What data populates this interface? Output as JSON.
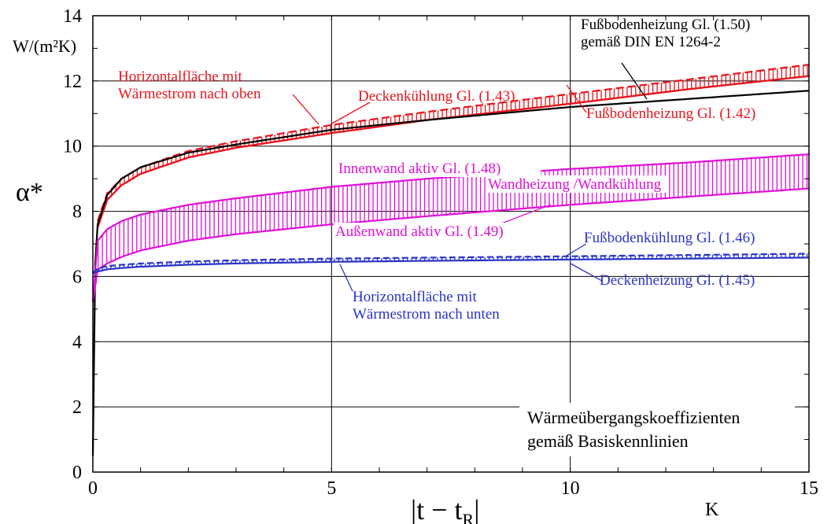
{
  "chart_data": {
    "type": "line",
    "ylabel": "α*",
    "yunit": "W/(m²K)",
    "xlabel_main": "|t − t",
    "xlabel_sub": "R",
    "xlabel_end": "|",
    "xunit": "K",
    "xlim": [
      0,
      15
    ],
    "ylim": [
      0,
      14
    ],
    "xticks": [
      0,
      5,
      10,
      15
    ],
    "yticks": [
      0,
      2,
      4,
      6,
      8,
      10,
      12,
      14
    ],
    "grid": true,
    "box_text": [
      "Wärmeübergangskoeffizienten",
      "gemäß Basiskennlinien"
    ],
    "series": [
      {
        "name": "Deckenkühlung Gl. (1.43)",
        "color": "#e8141c",
        "style": "band",
        "x": [
          0.1,
          0.3,
          0.6,
          1,
          2,
          3,
          5,
          7,
          10,
          12.5,
          15
        ],
        "upper": [
          7.7,
          8.55,
          9.0,
          9.35,
          9.85,
          10.15,
          10.65,
          11.05,
          11.6,
          12.05,
          12.5
        ],
        "lower": [
          7.5,
          8.35,
          8.8,
          9.15,
          9.65,
          9.95,
          10.4,
          10.8,
          11.3,
          11.75,
          12.15
        ]
      },
      {
        "name": "Fußbodenheizung Gl. (1.42)",
        "color": "#e8141c",
        "style": "line",
        "x": [
          0.1,
          0.3,
          0.6,
          1,
          2,
          3,
          5,
          7,
          10,
          12.5,
          15
        ],
        "y": [
          7.5,
          8.35,
          8.8,
          9.15,
          9.65,
          9.95,
          10.4,
          10.8,
          11.3,
          11.75,
          12.15
        ]
      },
      {
        "name": "Fußbodenheizung Gl. (1.50) gemäß DIN EN 1264-2",
        "color": "#000000",
        "style": "line",
        "x": [
          0,
          0.05,
          0.1,
          0.3,
          0.6,
          1,
          2,
          3,
          5,
          7,
          10,
          12.5,
          15
        ],
        "y": [
          0.5,
          6.4,
          7.6,
          8.5,
          9.0,
          9.35,
          9.8,
          10.05,
          10.5,
          10.8,
          11.2,
          11.45,
          11.7
        ]
      },
      {
        "name": "Wandheizung /Wandkühlung",
        "color": "#e010d8",
        "style": "band",
        "x": [
          0,
          0.1,
          0.3,
          0.6,
          1,
          2,
          3,
          5,
          7,
          10,
          12.5,
          15
        ],
        "upper": [
          5.2,
          7.1,
          7.45,
          7.7,
          7.9,
          8.2,
          8.4,
          8.75,
          9.0,
          9.3,
          9.5,
          9.75
        ],
        "lower": [
          5.2,
          6.2,
          6.4,
          6.6,
          6.8,
          7.1,
          7.3,
          7.6,
          7.85,
          8.2,
          8.45,
          8.7
        ]
      },
      {
        "name": "Fußbodenkühlung Gl. (1.46)",
        "color": "#2a34c8",
        "style": "band",
        "x": [
          0,
          0.1,
          0.3,
          0.6,
          1,
          2,
          3,
          5,
          7,
          10,
          12.5,
          15
        ],
        "upper": [
          6.1,
          6.25,
          6.32,
          6.36,
          6.4,
          6.46,
          6.5,
          6.55,
          6.58,
          6.62,
          6.66,
          6.7
        ],
        "lower": [
          6.1,
          6.15,
          6.22,
          6.26,
          6.3,
          6.36,
          6.4,
          6.45,
          6.48,
          6.52,
          6.55,
          6.58
        ]
      }
    ],
    "annotations": [
      {
        "id": "horiz-oben",
        "lines": [
          "Horizontalfläche mit",
          "Wärmestrom nach oben"
        ],
        "color": "#e8141c"
      },
      {
        "id": "deckenkuehlung",
        "lines": [
          "Deckenkühlung Gl. (1.43)"
        ],
        "color": "#e8141c"
      },
      {
        "id": "fussboden-150",
        "lines": [
          "Fußbodenheizung Gl. (1.50)",
          "gemäß DIN EN 1264-2"
        ],
        "color": "#000000"
      },
      {
        "id": "fussboden-142",
        "lines": [
          "Fußbodenheizung Gl. (1.42)"
        ],
        "color": "#e8141c"
      },
      {
        "id": "innenwand",
        "lines": [
          "Innenwand aktiv  Gl. (1.48)"
        ],
        "color": "#e010d8"
      },
      {
        "id": "wandheizung",
        "lines": [
          "Wandheizung /Wandkühlung"
        ],
        "color": "#e010d8"
      },
      {
        "id": "aussenwand",
        "lines": [
          "Außenwand aktiv  Gl. (1.49)"
        ],
        "color": "#e010d8"
      },
      {
        "id": "fussbodenkuehlung",
        "lines": [
          "Fußbodenkühlung Gl. (1.46)"
        ],
        "color": "#2a34c8"
      },
      {
        "id": "deckenheizung",
        "lines": [
          "Deckenheizung Gl. (1.45)"
        ],
        "color": "#2a34c8"
      },
      {
        "id": "horiz-unten",
        "lines": [
          "Horizontalfläche mit",
          "Wärmestrom nach unten"
        ],
        "color": "#2a34c8"
      }
    ]
  }
}
